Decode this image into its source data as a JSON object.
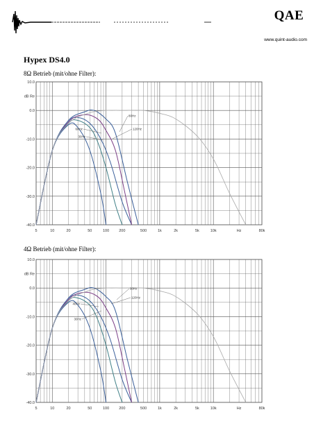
{
  "header": {
    "logo_text": "QAE",
    "url": "www.quint-audio.com"
  },
  "title": "Hypex DS4.0",
  "sections": [
    {
      "caption": "8Ω Betrieb (mit/ohne Filter):"
    },
    {
      "caption": "4Ω Betrieb (mit/ohne Filter):"
    }
  ],
  "colors": {
    "grid": "#555555",
    "filtered_blue": "#3a5f9a",
    "filtered_purple": "#7a3d86",
    "filtered_teal": "#3f7f86",
    "unfiltered_gray": "#a8a8a8"
  },
  "chart_data": [
    {
      "type": "line",
      "x_scale": "log",
      "xlim": [
        5,
        80000
      ],
      "ylim": [
        -40,
        10
      ],
      "ylabel": "dB Re",
      "grid": true,
      "x_tick_labels": [
        {
          "x": 5,
          "label": "5"
        },
        {
          "x": 10,
          "label": "10"
        },
        {
          "x": 20,
          "label": "20"
        },
        {
          "x": 50,
          "label": "50"
        },
        {
          "x": 100,
          "label": "100"
        },
        {
          "x": 200,
          "label": "200"
        },
        {
          "x": 500,
          "label": "500"
        },
        {
          "x": 1000,
          "label": "1k"
        },
        {
          "x": 2000,
          "label": "2k"
        },
        {
          "x": 5000,
          "label": "5k"
        },
        {
          "x": 10000,
          "label": "10k"
        },
        {
          "x": 30000,
          "label": "Hz"
        },
        {
          "x": 80000,
          "label": "80k"
        }
      ],
      "y_tick_labels": [
        {
          "y": 10,
          "label": "10.0"
        },
        {
          "y": 0,
          "label": "0.0"
        },
        {
          "y": -10,
          "label": "-10.0"
        },
        {
          "y": -20,
          "label": "-20.0"
        },
        {
          "y": -30,
          "label": "-30.0"
        },
        {
          "y": -40,
          "label": "-40.0"
        }
      ],
      "series": [
        {
          "color": "#3a5f9a",
          "x": [
            5,
            10,
            20,
            30,
            50,
            80,
            120,
            200,
            300
          ],
          "y": [
            -40,
            -14,
            -4,
            -2.5,
            -4.5,
            -10,
            -18,
            -32,
            -40
          ]
        },
        {
          "color": "#3f7f86",
          "x": [
            5,
            10,
            20,
            30,
            50,
            70,
            100,
            150,
            200
          ],
          "y": [
            -40,
            -14,
            -4.5,
            -3.5,
            -6,
            -11,
            -20,
            -33,
            -40
          ]
        },
        {
          "color": "#7a3d86",
          "x": [
            5,
            10,
            20,
            40,
            70,
            100,
            150,
            220,
            300
          ],
          "y": [
            -40,
            -14,
            -4,
            -1.5,
            -3,
            -7,
            -14,
            -28,
            -40
          ]
        },
        {
          "color": "#3a5f9a",
          "x": [
            5,
            10,
            20,
            40,
            60,
            100,
            150,
            250,
            400
          ],
          "y": [
            -40,
            -14,
            -3.5,
            -0.5,
            0,
            -3,
            -8,
            -25,
            -40
          ]
        },
        {
          "color": "#3a5f9a",
          "x": [
            5,
            10,
            20,
            30,
            50,
            80,
            100
          ],
          "y": [
            -40,
            -14,
            -5,
            -6,
            -14,
            -29,
            -40
          ]
        },
        {
          "color": "#a8a8a8",
          "x": [
            5,
            10,
            20,
            50,
            100,
            200,
            500,
            1000,
            2000,
            5000,
            10000,
            20000,
            40000
          ],
          "y": [
            -40,
            -14,
            -4.5,
            -0.8,
            0,
            0,
            0,
            -1,
            -3,
            -9,
            -17,
            -29,
            -40
          ]
        }
      ],
      "annotations": [
        {
          "text": "80Hz"
        },
        {
          "text": "120Hz"
        },
        {
          "text": "60Hz"
        },
        {
          "text": "30Hz"
        }
      ]
    },
    {
      "type": "line",
      "x_scale": "log",
      "xlim": [
        5,
        80000
      ],
      "ylim": [
        -40,
        10
      ],
      "ylabel": "dB Re",
      "grid": true,
      "x_tick_labels": [
        {
          "x": 5,
          "label": "5"
        },
        {
          "x": 10,
          "label": "10"
        },
        {
          "x": 20,
          "label": "20"
        },
        {
          "x": 50,
          "label": "50"
        },
        {
          "x": 100,
          "label": "100"
        },
        {
          "x": 200,
          "label": "200"
        },
        {
          "x": 500,
          "label": "500"
        },
        {
          "x": 1000,
          "label": "1k"
        },
        {
          "x": 2000,
          "label": "2k"
        },
        {
          "x": 5000,
          "label": "5k"
        },
        {
          "x": 10000,
          "label": "10k"
        },
        {
          "x": 30000,
          "label": "Hz"
        },
        {
          "x": 80000,
          "label": "80k"
        }
      ],
      "y_tick_labels": [
        {
          "y": 10,
          "label": "10.0"
        },
        {
          "y": 0,
          "label": "0.0"
        },
        {
          "y": -10,
          "label": "-10.0"
        },
        {
          "y": -20,
          "label": "-20.0"
        },
        {
          "y": -30,
          "label": "-30.0"
        },
        {
          "y": -40,
          "label": "-40.0"
        }
      ],
      "series": [
        {
          "color": "#3a5f9a",
          "x": [
            5,
            10,
            20,
            30,
            50,
            80,
            120,
            200,
            300
          ],
          "y": [
            -40,
            -14,
            -4,
            -2.5,
            -4.5,
            -10,
            -18,
            -32,
            -40
          ]
        },
        {
          "color": "#3f7f86",
          "x": [
            5,
            10,
            20,
            30,
            50,
            70,
            100,
            150,
            200
          ],
          "y": [
            -40,
            -14,
            -4.5,
            -3.5,
            -6,
            -11,
            -20,
            -33,
            -40
          ]
        },
        {
          "color": "#7a3d86",
          "x": [
            5,
            10,
            20,
            40,
            70,
            100,
            150,
            220,
            300
          ],
          "y": [
            -40,
            -14,
            -4,
            -1.5,
            -3,
            -7,
            -14,
            -28,
            -40
          ]
        },
        {
          "color": "#3a5f9a",
          "x": [
            5,
            10,
            20,
            40,
            60,
            100,
            150,
            250,
            400
          ],
          "y": [
            -40,
            -14,
            -3.5,
            -0.5,
            0,
            -3,
            -8,
            -25,
            -40
          ]
        },
        {
          "color": "#3a5f9a",
          "x": [
            5,
            10,
            20,
            30,
            50,
            80,
            100
          ],
          "y": [
            -40,
            -14,
            -5,
            -6,
            -14,
            -29,
            -40
          ]
        },
        {
          "color": "#a8a8a8",
          "x": [
            5,
            10,
            20,
            50,
            100,
            200,
            500,
            1000,
            2000,
            5000,
            10000,
            20000,
            40000
          ],
          "y": [
            -40,
            -14,
            -4.5,
            -0.8,
            0,
            0,
            0,
            -1,
            -3,
            -9,
            -17,
            -29,
            -40
          ]
        }
      ],
      "annotations": [
        {
          "text": "90Hz"
        },
        {
          "text": "120Hz"
        },
        {
          "text": "40Hz"
        },
        {
          "text": "30Hz"
        }
      ]
    }
  ]
}
